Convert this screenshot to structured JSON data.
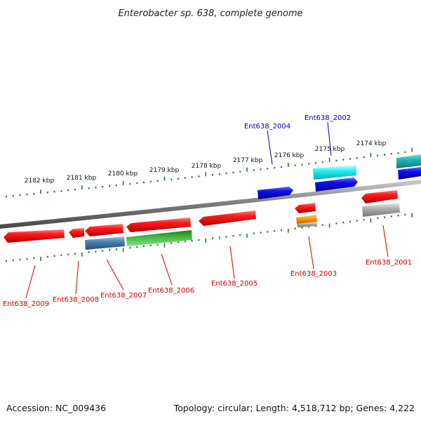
{
  "title": "Enterobacter sp. 638, complete genome",
  "footer": {
    "accession": "Accession: NC_009436",
    "summary": "Topology: circular; Length: 4,518,712 bp; Genes: 4,222"
  },
  "scale_labels": [
    "2182 kbp",
    "2181 kbp",
    "2180 kbp",
    "2179 kbp",
    "2178 kbp",
    "2177 kbp",
    "2176 kbp",
    "2175 kbp",
    "2174 kbp"
  ],
  "colors": {
    "backbone": "#808080",
    "ruler_ticks": "#2a7a2a",
    "gene_label_red": "#cc0000",
    "gene_label_blue": "#0000aa",
    "feature_red": "#ee1111",
    "feature_blue": "#1010dd",
    "feature_cyan": "#22e8ee",
    "feature_teal": "#22b0b0",
    "feature_steelblue": "#4a80b0",
    "feature_green": "#33aa33",
    "feature_orange": "#ff9900",
    "feature_gray": "#a8a8a8"
  },
  "gene_labels": [
    {
      "id": "Ent638_2009",
      "color": "red"
    },
    {
      "id": "Ent638_2008",
      "color": "red"
    },
    {
      "id": "Ent638_2007",
      "color": "red"
    },
    {
      "id": "Ent638_2006",
      "color": "red"
    },
    {
      "id": "Ent638_2005",
      "color": "red"
    },
    {
      "id": "Ent638_2003",
      "color": "red"
    },
    {
      "id": "Ent638_2001",
      "color": "red"
    },
    {
      "id": "Ent638_2004",
      "color": "blue"
    },
    {
      "id": "Ent638_2002",
      "color": "blue"
    }
  ]
}
